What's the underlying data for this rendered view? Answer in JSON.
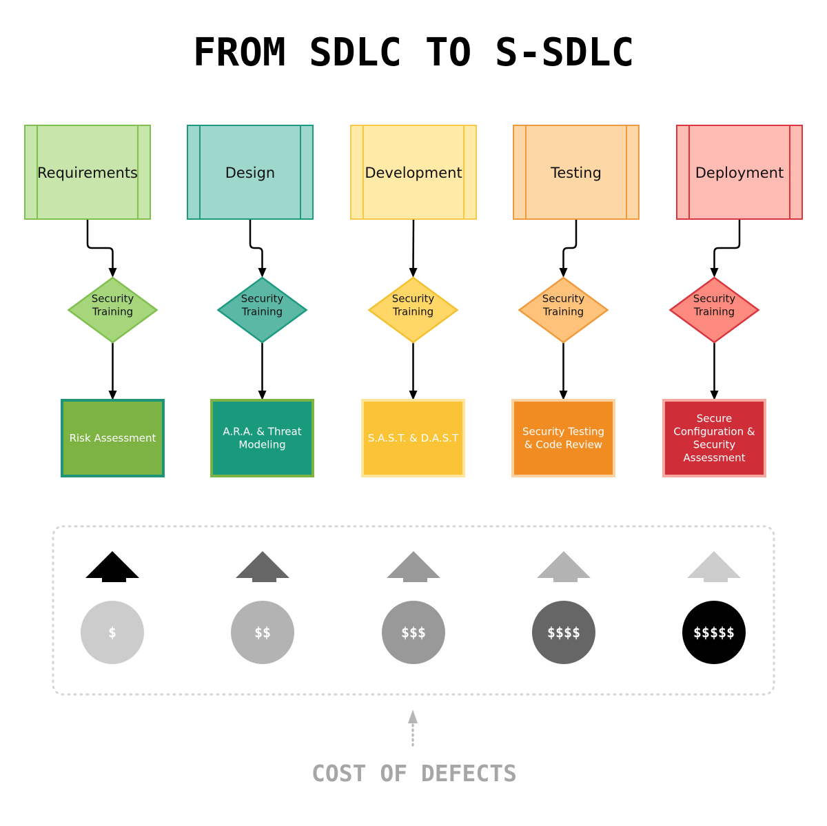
{
  "title": "FROM SDLC TO S-SDLC",
  "footer_label": "COST OF DEFECTS",
  "phases": [
    {
      "name": "Requirements",
      "training": [
        "Security",
        "Training"
      ],
      "activity": [
        "Risk Assessment"
      ],
      "colors": {
        "header_fill": "#c8e6ac",
        "header_stroke": "#7fbf4d",
        "diamond_fill": "#a5d67c",
        "diamond_stroke": "#7fbf4d",
        "activity_fill": "#7cb342",
        "activity_stroke": "#1e9478"
      }
    },
    {
      "name": "Design",
      "training": [
        "Security",
        "Training"
      ],
      "activity": [
        "A.R.A. & Threat",
        "Modeling"
      ],
      "colors": {
        "header_fill": "#9ed8cd",
        "header_stroke": "#1b9a7f",
        "diamond_fill": "#5ab8a4",
        "diamond_stroke": "#1b9a7f",
        "activity_fill": "#1a9a7c",
        "activity_stroke": "#7cb342"
      }
    },
    {
      "name": "Development",
      "training": [
        "Security",
        "Training"
      ],
      "activity": [
        "S.A.S.T. & D.A.S.T"
      ],
      "colors": {
        "header_fill": "#ffeaa8",
        "header_stroke": "#f7c948",
        "diamond_fill": "#ffd766",
        "diamond_stroke": "#f4c030",
        "activity_fill": "#fbc436",
        "activity_stroke": "#ffe49a"
      }
    },
    {
      "name": "Testing",
      "training": [
        "Security",
        "Training"
      ],
      "activity": [
        "Security Testing",
        "& Code Review"
      ],
      "colors": {
        "header_fill": "#fdd7a6",
        "header_stroke": "#f09a3e",
        "diamond_fill": "#ffc27a",
        "diamond_stroke": "#f09a3e",
        "activity_fill": "#f08c21",
        "activity_stroke": "#fdd0a0"
      }
    },
    {
      "name": "Deployment",
      "training": [
        "Security",
        "Training"
      ],
      "activity": [
        "Secure",
        "Configuration &",
        "Security",
        "Assessment"
      ],
      "colors": {
        "header_fill": "#ffbcb4",
        "header_stroke": "#d9363e",
        "diamond_fill": "#fc8a7e",
        "diamond_stroke": "#d9363e",
        "activity_fill": "#cf2e38",
        "activity_stroke": "#f7a8a0"
      }
    }
  ],
  "cost": {
    "arrow_colors": [
      "#000000",
      "#666666",
      "#999999",
      "#b3b3b3",
      "#cccccc"
    ],
    "circles": [
      {
        "label": "$",
        "fill": "#cccccc"
      },
      {
        "label": "$$",
        "fill": "#b3b3b3"
      },
      {
        "label": "$$$",
        "fill": "#999999"
      },
      {
        "label": "$$$$",
        "fill": "#666666"
      },
      {
        "label": "$$$$$",
        "fill": "#000000"
      }
    ]
  }
}
